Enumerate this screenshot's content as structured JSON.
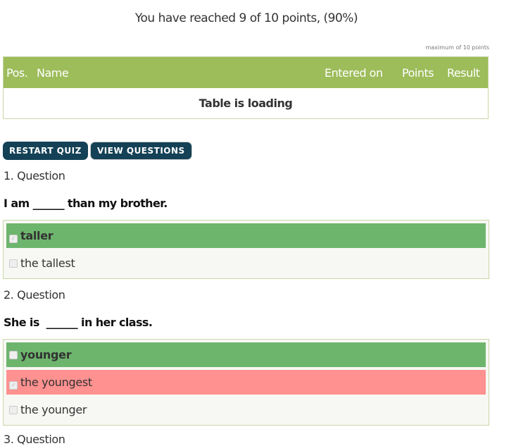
{
  "result": {
    "title": "You have reached 9 of 10 points, (90%)",
    "max_points": "maximum of 10 points"
  },
  "table": {
    "headers": [
      "Pos.",
      "Name",
      "Entered on",
      "Points",
      "Result"
    ],
    "loading": "Table is loading"
  },
  "buttons": {
    "restart": "RESTART QUIZ",
    "view": "VIEW QUESTIONS"
  },
  "questions": [
    {
      "number": "1. Question",
      "text": "I am ______ than my brother.",
      "answers": [
        {
          "label": "taller",
          "state": "correct",
          "checked": true
        },
        {
          "label": "the tallest",
          "state": "neutral",
          "checked": false
        }
      ]
    },
    {
      "number": "2. Question",
      "text": "She is  ______ in her class.",
      "answers": [
        {
          "label": "younger",
          "state": "correct",
          "checked": false
        },
        {
          "label": "the youngest",
          "state": "wrong",
          "checked": true
        },
        {
          "label": "the younger",
          "state": "neutral",
          "checked": false
        }
      ]
    },
    {
      "number": "3. Question"
    }
  ],
  "colors": {
    "header": "#9dbc5a",
    "button": "#144156",
    "correct": "#6db56d",
    "wrong": "#ff9190"
  }
}
